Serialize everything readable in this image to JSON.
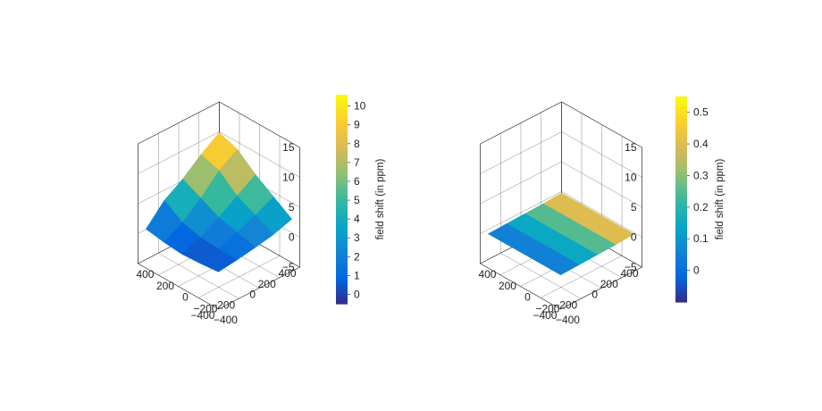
{
  "colormap": [
    "#352a87",
    "#0268e1",
    "#1485d4",
    "#06a7c6",
    "#38b99e",
    "#92bf73",
    "#d9ba56",
    "#fcce2e",
    "#f9fb0e"
  ],
  "chart_data": [
    {
      "type": "surface3d",
      "xlim": [
        -400,
        400
      ],
      "ylim": [
        -400,
        400
      ],
      "zlim": [
        -5,
        15
      ],
      "x_ticks": [
        -400,
        -200,
        0,
        200,
        400
      ],
      "y_ticks": [
        -400,
        -200,
        0,
        200,
        400
      ],
      "z_ticks": [
        -5,
        0,
        5,
        10,
        15
      ],
      "grid": true,
      "surface": {
        "x": [
          -360,
          -180,
          0,
          180,
          360
        ],
        "y": [
          -360,
          -180,
          0,
          180,
          360
        ],
        "z": [
          [
            0.5,
            0.2,
            0.0,
            0.3,
            0.8
          ],
          [
            0.9,
            1.0,
            1.2,
            2.0,
            4.0
          ],
          [
            1.4,
            2.2,
            3.0,
            4.5,
            6.0
          ],
          [
            2.0,
            3.5,
            5.0,
            7.5,
            8.5
          ],
          [
            3.0,
            5.0,
            7.0,
            9.5,
            10.6
          ]
        ]
      },
      "colorbar": {
        "label": "field shift (in ppm)",
        "ticks": [
          0,
          1,
          2,
          3,
          4,
          5,
          6,
          7,
          8,
          9,
          10
        ],
        "range": [
          -0.5,
          10.6
        ]
      }
    },
    {
      "type": "surface3d",
      "xlim": [
        -400,
        400
      ],
      "ylim": [
        -400,
        400
      ],
      "zlim": [
        -5,
        15
      ],
      "x_ticks": [
        -400,
        -200,
        0,
        200,
        400
      ],
      "y_ticks": [
        -400,
        -200,
        0,
        200,
        400
      ],
      "z_ticks": [
        -5,
        0,
        5,
        10,
        15
      ],
      "grid": true,
      "surface": {
        "x": [
          -360,
          -180,
          0,
          180,
          360
        ],
        "y": [
          -360,
          -180,
          0,
          180,
          360
        ],
        "z": [
          [
            0.0,
            0.0,
            0.0,
            0.0,
            0.0
          ],
          [
            0.1,
            0.1,
            0.1,
            0.1,
            0.1
          ],
          [
            0.2,
            0.2,
            0.2,
            0.2,
            0.2
          ],
          [
            0.3,
            0.3,
            0.3,
            0.3,
            0.3
          ],
          [
            0.5,
            0.5,
            0.5,
            0.5,
            0.5
          ]
        ]
      },
      "colorbar": {
        "label": "field shift (in ppm)",
        "ticks": [
          0,
          0.1,
          0.2,
          0.3,
          0.4,
          0.5
        ],
        "range": [
          -0.1,
          0.55
        ]
      }
    }
  ]
}
